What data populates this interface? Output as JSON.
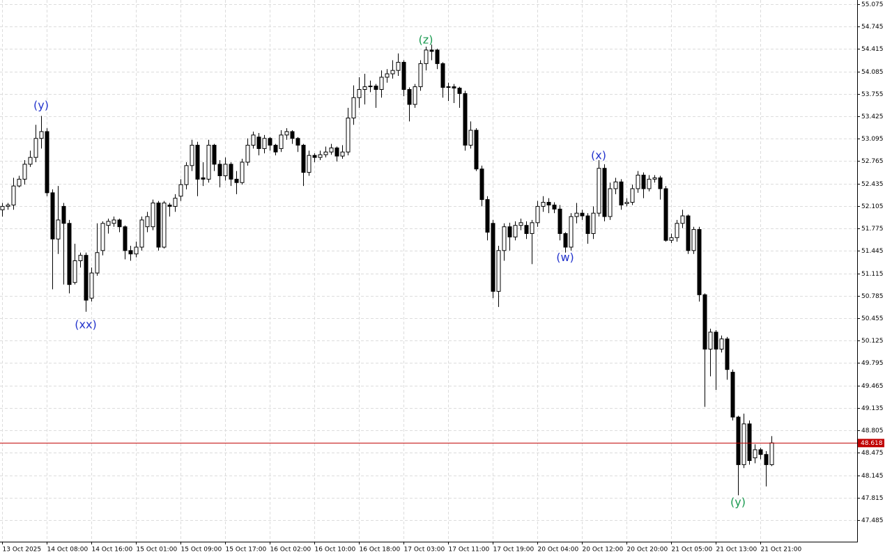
{
  "chart_data": {
    "type": "candlestick",
    "open": [
      52.05,
      52.1,
      52.12,
      52.4,
      52.5,
      52.72,
      52.82,
      53.1,
      53.2,
      52.3,
      51.62,
      52.1,
      51.85,
      50.98,
      51.3,
      51.38,
      50.75,
      51.12,
      51.45,
      51.82,
      51.85,
      51.9,
      51.8,
      51.45,
      51.4,
      51.5,
      51.8,
      51.8,
      52.15,
      51.5,
      52.12,
      52.1,
      52.25,
      52.42,
      52.7,
      53.0,
      52.52,
      52.5,
      53.0,
      52.72,
      52.55,
      52.72,
      52.5,
      52.45,
      52.75,
      53.0,
      53.12,
      52.95,
      53.1,
      53.0,
      52.95,
      53.15,
      53.2,
      53.1,
      53.0,
      52.6,
      52.85,
      52.82,
      52.86,
      52.9,
      52.96,
      52.84,
      52.9,
      53.4,
      53.7,
      53.82,
      53.86,
      53.87,
      53.82,
      54.0,
      54.05,
      54.1,
      54.22,
      53.82,
      53.6,
      53.86,
      54.2,
      54.4,
      54.4,
      54.2,
      53.85,
      53.86,
      53.84,
      53.76,
      53.0,
      53.22,
      52.65,
      52.2,
      51.85,
      50.85,
      51.45,
      51.8,
      51.65,
      51.82,
      51.82,
      51.7,
      51.86,
      52.1,
      52.16,
      52.12,
      52.06,
      51.7,
      51.5,
      51.95,
      52.0,
      51.96,
      51.7,
      52.0,
      52.66,
      51.95,
      52.36,
      52.46,
      52.14,
      52.16,
      52.36,
      52.56,
      52.36,
      52.5,
      52.52,
      52.36,
      51.6,
      51.64,
      51.85,
      51.96,
      51.45,
      51.76,
      50.8,
      50.0,
      50.25,
      50.0,
      50.15,
      49.66,
      49.0,
      48.3,
      48.9,
      48.4,
      48.52,
      48.45,
      48.3
    ],
    "high": [
      52.15,
      52.15,
      52.52,
      52.55,
      52.78,
      52.92,
      53.3,
      53.43,
      53.25,
      52.35,
      52.4,
      52.15,
      51.9,
      51.55,
      51.42,
      51.42,
      51.2,
      51.85,
      51.88,
      51.92,
      51.95,
      51.92,
      51.82,
      51.52,
      51.58,
      51.95,
      52.02,
      52.2,
      52.18,
      52.18,
      52.15,
      52.28,
      52.5,
      52.75,
      53.08,
      53.05,
      52.75,
      53.08,
      53.02,
      52.78,
      52.82,
      52.75,
      52.62,
      52.8,
      53.1,
      53.2,
      53.18,
      53.15,
      53.12,
      53.02,
      53.22,
      53.25,
      53.22,
      53.12,
      53.02,
      52.92,
      52.88,
      52.92,
      52.98,
      53.02,
      52.98,
      53.0,
      53.55,
      53.88,
      54.0,
      54.05,
      53.95,
      53.9,
      54.1,
      54.12,
      54.25,
      54.35,
      54.25,
      53.85,
      53.9,
      54.25,
      54.45,
      54.48,
      54.42,
      54.22,
      53.92,
      53.9,
      53.86,
      53.8,
      53.35,
      53.25,
      52.7,
      52.25,
      51.9,
      51.52,
      51.85,
      51.86,
      51.88,
      51.92,
      51.88,
      51.9,
      52.18,
      52.25,
      52.22,
      52.16,
      52.12,
      51.72,
      52.0,
      52.15,
      52.05,
      52.0,
      52.1,
      52.78,
      52.72,
      52.45,
      52.52,
      52.5,
      52.22,
      52.42,
      52.62,
      52.6,
      52.56,
      52.56,
      52.55,
      52.4,
      51.7,
      51.9,
      52.05,
      51.98,
      51.8,
      51.8,
      50.82,
      50.3,
      50.28,
      50.2,
      50.18,
      49.7,
      49.02,
      49.05,
      48.95,
      48.6,
      48.55,
      48.5,
      48.72
    ],
    "low": [
      51.95,
      52.05,
      52.05,
      52.38,
      52.42,
      52.68,
      52.75,
      52.95,
      52.25,
      50.88,
      51.4,
      50.95,
      50.82,
      50.95,
      51.2,
      50.55,
      50.7,
      51.08,
      51.38,
      51.7,
      51.8,
      51.72,
      51.32,
      51.3,
      51.35,
      51.45,
      51.72,
      51.75,
      51.45,
      51.48,
      51.95,
      52.02,
      52.18,
      52.35,
      52.62,
      52.25,
      52.4,
      52.45,
      52.62,
      52.38,
      52.48,
      52.4,
      52.28,
      52.42,
      52.7,
      52.95,
      52.85,
      52.88,
      52.92,
      52.85,
      52.9,
      53.08,
      53.02,
      52.9,
      52.4,
      52.55,
      52.75,
      52.78,
      52.82,
      52.86,
      52.76,
      52.8,
      52.85,
      53.3,
      53.55,
      53.6,
      53.78,
      53.55,
      53.7,
      53.92,
      53.98,
      54.02,
      53.72,
      53.35,
      53.55,
      53.8,
      54.1,
      54.25,
      54.12,
      53.7,
      53.65,
      53.62,
      53.55,
      52.92,
      52.95,
      52.62,
      52.1,
      51.6,
      50.75,
      50.62,
      51.3,
      51.45,
      51.6,
      51.75,
      51.62,
      51.25,
      51.8,
      52.02,
      52.0,
      52.0,
      51.6,
      51.42,
      51.45,
      51.85,
      51.9,
      51.55,
      51.62,
      51.95,
      51.88,
      51.9,
      52.28,
      52.05,
      52.1,
      52.12,
      52.3,
      52.22,
      52.32,
      52.45,
      52.2,
      51.58,
      51.56,
      51.58,
      51.78,
      51.4,
      51.4,
      50.7,
      49.15,
      49.6,
      49.4,
      49.95,
      49.55,
      48.95,
      47.85,
      48.25,
      48.3,
      48.32,
      48.38,
      47.98,
      48.28
    ],
    "close": [
      52.1,
      52.12,
      52.4,
      52.5,
      52.72,
      52.82,
      53.1,
      53.2,
      52.3,
      51.62,
      51.9,
      51.85,
      50.95,
      51.3,
      51.38,
      50.72,
      51.12,
      51.42,
      51.85,
      51.88,
      51.9,
      51.8,
      51.45,
      51.4,
      51.5,
      51.9,
      51.95,
      52.15,
      51.5,
      52.15,
      52.1,
      52.22,
      52.42,
      52.7,
      53.0,
      52.5,
      52.5,
      53.0,
      52.72,
      52.55,
      52.72,
      52.5,
      52.45,
      52.75,
      53.0,
      53.15,
      52.95,
      53.1,
      53.0,
      52.9,
      53.15,
      53.2,
      53.1,
      53.0,
      52.6,
      52.85,
      52.82,
      52.86,
      52.9,
      52.96,
      52.84,
      52.9,
      53.4,
      53.7,
      53.82,
      53.86,
      53.87,
      53.82,
      54.0,
      54.05,
      54.1,
      54.22,
      53.82,
      53.6,
      53.86,
      54.2,
      54.4,
      54.38,
      54.2,
      53.85,
      53.86,
      53.84,
      53.76,
      53.0,
      53.22,
      52.65,
      52.2,
      51.72,
      50.85,
      51.45,
      51.8,
      51.65,
      51.82,
      51.86,
      51.7,
      51.86,
      52.1,
      52.16,
      52.12,
      52.06,
      51.7,
      51.5,
      51.95,
      52.0,
      51.96,
      51.7,
      52.0,
      52.66,
      51.95,
      52.36,
      52.46,
      52.12,
      52.16,
      52.36,
      52.56,
      52.36,
      52.5,
      52.52,
      52.36,
      51.6,
      51.64,
      51.85,
      51.96,
      51.45,
      51.76,
      50.8,
      50.0,
      50.25,
      50.0,
      50.15,
      49.7,
      49.0,
      48.3,
      48.9,
      48.36,
      48.52,
      48.45,
      48.3,
      48.62
    ],
    "up_color": "#ffffff",
    "down_color": "#000000",
    "wick_color": "#000000",
    "ylim": [
      47.167,
      55.136
    ],
    "yticks": [
      55.075,
      54.745,
      54.415,
      54.085,
      53.755,
      53.425,
      53.095,
      52.765,
      52.435,
      52.105,
      51.775,
      51.445,
      51.115,
      50.785,
      50.455,
      50.125,
      49.795,
      49.465,
      49.135,
      48.805,
      48.475,
      48.145,
      47.815,
      47.485
    ],
    "xticks": [
      {
        "value": 0,
        "label": "13 Oct 2025"
      },
      {
        "value": 8,
        "label": "14 Oct 08:00"
      },
      {
        "value": 16,
        "label": "14 Oct 16:00"
      },
      {
        "value": 24,
        "label": "15 Oct 01:00"
      },
      {
        "value": 32,
        "label": "15 Oct 09:00"
      },
      {
        "value": 40,
        "label": "15 Oct 17:00"
      },
      {
        "value": 48,
        "label": "16 Oct 02:00"
      },
      {
        "value": 56,
        "label": "16 Oct 10:00"
      },
      {
        "value": 64,
        "label": "16 Oct 18:00"
      },
      {
        "value": 72,
        "label": "17 Oct 03:00"
      },
      {
        "value": 80,
        "label": "17 Oct 11:00"
      },
      {
        "value": 88,
        "label": "17 Oct 19:00"
      },
      {
        "value": 96,
        "label": "20 Oct 04:00"
      },
      {
        "value": 104,
        "label": "20 Oct 12:00"
      },
      {
        "value": 112,
        "label": "20 Oct 20:00"
      },
      {
        "value": 120,
        "label": "21 Oct 05:00"
      },
      {
        "value": 128,
        "label": "21 Oct 13:00"
      },
      {
        "value": 136,
        "label": "21 Oct 21:00"
      }
    ],
    "grid": true,
    "current_price": 48.618,
    "current_price_color": "#c00000",
    "annotations": [
      {
        "text": "(y)",
        "index": 7,
        "value": 53.58,
        "color": "#2233cc"
      },
      {
        "text": "(xx)",
        "index": 15,
        "value": 50.35,
        "color": "#2233cc"
      },
      {
        "text": "(z)",
        "index": 76,
        "value": 54.54,
        "color": "#1a9a50"
      },
      {
        "text": "(x)",
        "index": 107,
        "value": 52.84,
        "color": "#2233cc"
      },
      {
        "text": "(w)",
        "index": 101,
        "value": 51.34,
        "color": "#2233cc"
      },
      {
        "text": "(y)",
        "index": 132,
        "value": 47.74,
        "color": "#1a9a50"
      }
    ]
  }
}
